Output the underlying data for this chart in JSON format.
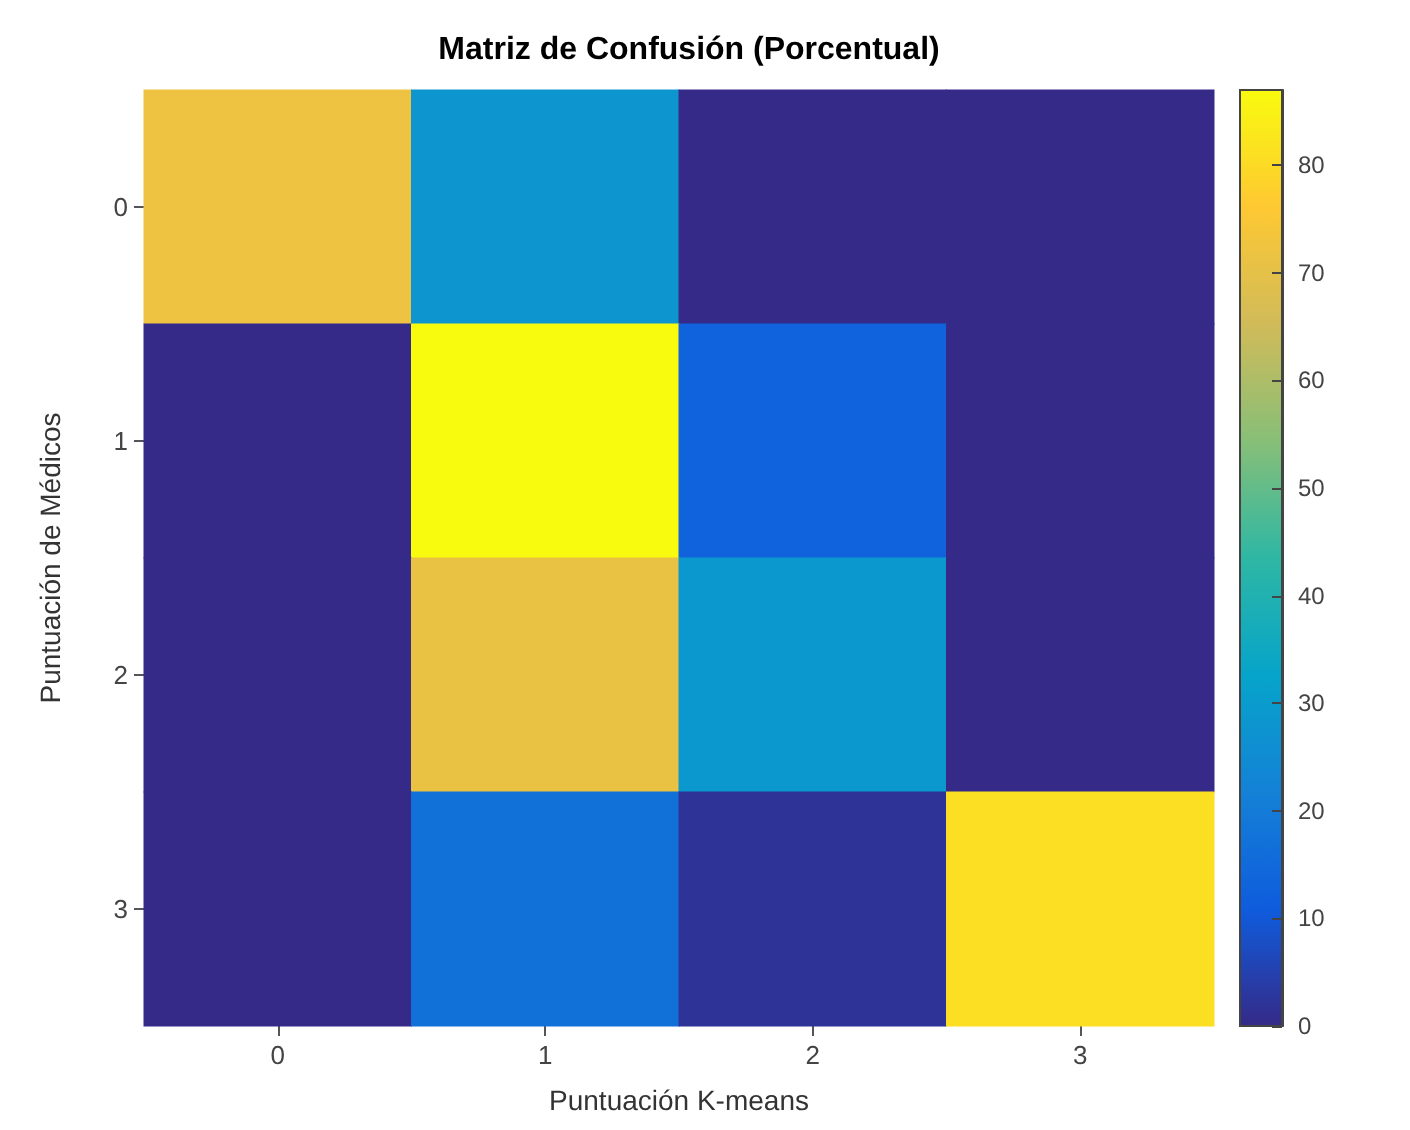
{
  "chart_data": {
    "type": "heatmap",
    "title": "Matriz de Confusión (Porcentual)",
    "xlabel": "Puntuación K-means",
    "ylabel": "Puntuación de Médicos",
    "categories": [
      "0",
      "1",
      "2",
      "3"
    ],
    "y_categories": [
      "0",
      "1",
      "2",
      "3"
    ],
    "cells": [
      [
        72,
        28,
        0,
        0
      ],
      [
        0,
        87,
        13,
        0
      ],
      [
        0,
        71,
        29,
        0
      ],
      [
        0,
        17,
        2,
        81
      ]
    ],
    "clim": [
      0,
      87
    ],
    "cticks": [
      0,
      10,
      20,
      30,
      40,
      50,
      60,
      70,
      80
    ]
  }
}
